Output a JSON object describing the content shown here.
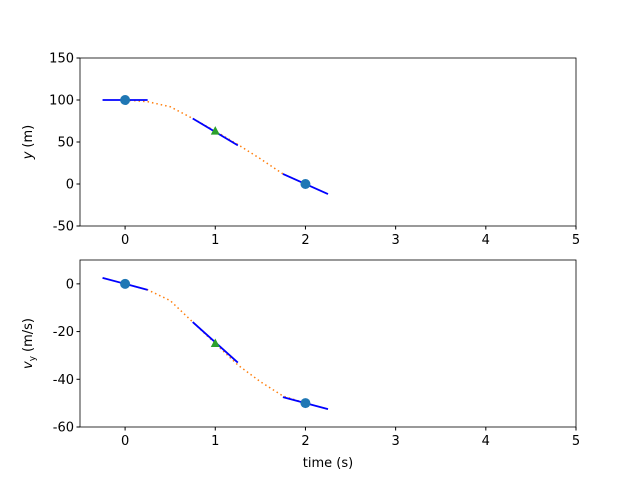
{
  "chart_data": [
    {
      "type": "line",
      "ylabel": [
        "y",
        "(m)"
      ],
      "xlim": [
        -0.5,
        5
      ],
      "ylim": [
        -50,
        150
      ],
      "xticks": [
        0,
        1,
        2,
        3,
        4,
        5
      ],
      "yticks": [
        -50,
        0,
        50,
        100,
        150
      ],
      "series": [
        {
          "color": "#ff7f0e",
          "style": "dotted",
          "x": [
            0,
            0.25,
            0.5,
            0.75,
            1,
            1.25,
            1.5,
            1.75,
            2
          ],
          "values": [
            100,
            98,
            92,
            78,
            63,
            47,
            30,
            12,
            0
          ]
        },
        {
          "color": "#0000ff",
          "style": "solid",
          "x": [
            -0.25,
            0.25
          ],
          "values": [
            100,
            100
          ]
        },
        {
          "color": "#0000ff",
          "style": "solid",
          "x": [
            0.75,
            1.25
          ],
          "values": [
            78,
            46
          ]
        },
        {
          "color": "#0000ff",
          "style": "solid",
          "x": [
            1.75,
            2.25
          ],
          "values": [
            12,
            -12
          ]
        },
        {
          "color": "#1f77b4",
          "style": "none",
          "marker": "o",
          "x": [
            0,
            2
          ],
          "values": [
            100,
            0
          ]
        },
        {
          "color": "#2ca02c",
          "style": "none",
          "marker": "^",
          "x": [
            1
          ],
          "values": [
            63
          ]
        }
      ]
    },
    {
      "type": "line",
      "ylabel": [
        "v",
        "y",
        "(m/s)"
      ],
      "xlabel": "time (s)",
      "xlim": [
        -0.5,
        5
      ],
      "ylim": [
        -60,
        10
      ],
      "xticks": [
        0,
        1,
        2,
        3,
        4,
        5
      ],
      "yticks": [
        -60,
        -40,
        -20,
        0
      ],
      "series": [
        {
          "color": "#ff7f0e",
          "style": "dotted",
          "x": [
            0,
            0.25,
            0.5,
            0.75,
            1,
            1.25,
            1.5,
            1.75,
            2
          ],
          "values": [
            0,
            -2.5,
            -7,
            -16,
            -25,
            -34,
            -41,
            -47,
            -50
          ]
        },
        {
          "color": "#0000ff",
          "style": "solid",
          "x": [
            -0.25,
            0.25
          ],
          "values": [
            2.5,
            -2.5
          ]
        },
        {
          "color": "#0000ff",
          "style": "solid",
          "x": [
            0.75,
            1.25
          ],
          "values": [
            -16,
            -33
          ]
        },
        {
          "color": "#0000ff",
          "style": "solid",
          "x": [
            1.75,
            2.25
          ],
          "values": [
            -47.5,
            -52.5
          ]
        },
        {
          "color": "#1f77b4",
          "style": "none",
          "marker": "o",
          "x": [
            0,
            2
          ],
          "values": [
            0,
            -50
          ]
        },
        {
          "color": "#2ca02c",
          "style": "none",
          "marker": "^",
          "x": [
            1
          ],
          "values": [
            -25
          ]
        }
      ]
    }
  ]
}
